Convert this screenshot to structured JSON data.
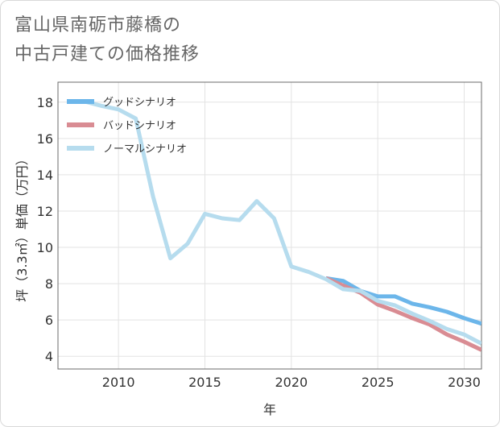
{
  "title_lines": [
    "富山県南砺市藤橋の",
    "中古戸建ての価格推移"
  ],
  "chart_data": {
    "type": "line",
    "xlabel": "年",
    "ylabel": "坪（3.3㎡）単価（万円）",
    "xlim": [
      2006.5,
      2031
    ],
    "ylim": [
      3.3,
      19.1
    ],
    "xticks": [
      2010,
      2015,
      2020,
      2025,
      2030
    ],
    "yticks": [
      4,
      6,
      8,
      10,
      12,
      14,
      16,
      18
    ],
    "grid": true,
    "legend_position": "top-left",
    "series": [
      {
        "name": "グッドシナリオ",
        "color": "#6cb6ea",
        "x": [
          2022,
          2023,
          2024,
          2025,
          2026,
          2027,
          2028,
          2029,
          2030,
          2031
        ],
        "values": [
          8.3,
          8.15,
          7.6,
          7.3,
          7.3,
          6.9,
          6.7,
          6.45,
          6.1,
          5.8
        ]
      },
      {
        "name": "バッドシナリオ",
        "color": "#d98c93",
        "x": [
          2022,
          2023,
          2024,
          2025,
          2026,
          2027,
          2028,
          2029,
          2030,
          2031
        ],
        "values": [
          8.3,
          7.9,
          7.5,
          6.85,
          6.5,
          6.1,
          5.75,
          5.2,
          4.8,
          4.35
        ]
      },
      {
        "name": "ノーマルシナリオ",
        "color": "#b6dcee",
        "x": [
          2008,
          2009,
          2010,
          2011,
          2012,
          2013,
          2014,
          2015,
          2016,
          2017,
          2018,
          2019,
          2020,
          2021,
          2022,
          2023,
          2024,
          2025,
          2026,
          2027,
          2028,
          2029,
          2030,
          2031
        ],
        "values": [
          18.05,
          17.8,
          17.6,
          17.1,
          12.8,
          9.4,
          10.2,
          11.85,
          11.6,
          11.5,
          12.55,
          11.6,
          8.95,
          8.65,
          8.25,
          7.7,
          7.6,
          7.05,
          6.8,
          6.35,
          5.95,
          5.5,
          5.2,
          4.7
        ]
      }
    ]
  }
}
